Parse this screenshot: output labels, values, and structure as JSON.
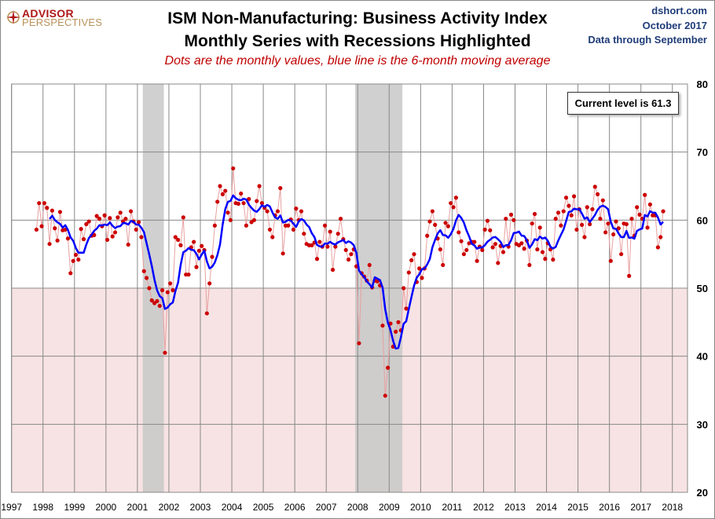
{
  "header": {
    "title_line1": "ISM Non-Manufacturing: Business Activity Index",
    "title_line2": "Monthly Series with Recessions Highlighted",
    "subtitle": "Dots are the monthly values, blue line is the 6-month moving average",
    "source": "dshort.com",
    "date": "October 2017",
    "data_through": "Data through September"
  },
  "logo": {
    "line1": "ADVISOR",
    "line2": "PERSPECTIVES"
  },
  "colors": {
    "dots": "#cc0000",
    "dot_line": "#e8a0a0",
    "ma_line": "#0000ff",
    "recession": "#c8c8c8",
    "contraction_zone": "#f7e3e3",
    "grid": "#888888"
  },
  "chart_data": {
    "type": "line",
    "title": "ISM Non-Manufacturing: Business Activity Index",
    "xlabel": "",
    "ylabel": "",
    "ylim": [
      20,
      80
    ],
    "xlim": [
      1997,
      2018
    ],
    "yticks": [
      "20",
      "30",
      "40",
      "50",
      "60",
      "70",
      "80"
    ],
    "xticks": [
      "1997",
      "1998",
      "1999",
      "2000",
      "2001",
      "2002",
      "2003",
      "2004",
      "2005",
      "2006",
      "2007",
      "2008",
      "2009",
      "2010",
      "2011",
      "2012",
      "2013",
      "2014",
      "2015",
      "2016",
      "2017",
      "2018"
    ],
    "grid": true,
    "series_start": "1997-10",
    "series_end": "2017-09",
    "monthly_values": [
      58.6,
      62.5,
      59.1,
      62.5,
      61.8,
      56.5,
      61.4,
      58.8,
      57.0,
      61.2,
      58.5,
      58.6,
      57.3,
      52.2,
      54.0,
      54.9,
      54.2,
      58.7,
      57.2,
      59.4,
      59.8,
      57.7,
      57.8,
      60.6,
      60.2,
      59.1,
      60.7,
      57.1,
      60.3,
      57.6,
      58.2,
      60.4,
      61.1,
      59.8,
      60.2,
      56.4,
      61.3,
      59.8,
      58.6,
      59.7,
      57.5,
      52.5,
      51.5,
      50.0,
      48.2,
      47.8,
      48.1,
      47.4,
      49.7,
      40.5,
      49.4,
      50.7,
      49.7,
      57.5,
      57.1,
      56.3,
      60.4,
      52.0,
      52.0,
      56.0,
      56.8,
      53.1,
      55.5,
      56.2,
      55.6,
      46.3,
      50.7,
      54.6,
      59.2,
      62.7,
      65.0,
      63.8,
      64.3,
      61.1,
      60.0,
      67.6,
      62.5,
      62.4,
      63.9,
      62.5,
      59.2,
      63.1,
      59.7,
      60.0,
      62.8,
      65.0,
      62.5,
      61.8,
      61.3,
      58.6,
      57.5,
      60.7,
      61.3,
      64.7,
      55.1,
      59.2,
      59.2,
      60.1,
      58.6,
      61.7,
      60.0,
      61.3,
      58.0,
      56.5,
      56.3,
      56.3,
      56.7,
      54.3,
      56.8,
      56.1,
      59.2,
      56.1,
      58.3,
      52.7,
      56.1,
      58.0,
      60.2,
      57.2,
      55.6,
      54.2,
      55.0,
      55.7,
      53.2,
      41.9,
      52.2,
      51.7,
      51.1,
      53.4,
      50.1,
      51.1,
      51.0,
      50.4,
      44.5,
      34.2,
      38.3,
      44.8,
      41.4,
      43.6,
      45.0,
      43.8,
      50.0,
      47.0,
      52.3,
      54.1,
      55.0,
      50.9,
      52.9,
      51.5,
      52.9,
      57.7,
      59.8,
      61.3,
      59.3,
      57.3,
      55.7,
      53.4,
      59.6,
      59.1,
      62.5,
      61.9,
      63.3,
      58.2,
      56.9,
      55.0,
      55.6,
      56.6,
      56.8,
      56.8,
      54.0,
      56.1,
      55.6,
      58.6,
      59.9,
      58.5,
      56.0,
      56.5,
      53.7,
      56.2,
      55.3,
      60.2,
      56.1,
      60.8,
      60.0,
      56.5,
      56.3,
      56.6,
      55.8,
      57.0,
      53.4,
      59.5,
      60.9,
      55.7,
      58.9,
      55.3,
      54.3,
      56.6,
      55.7,
      54.2,
      60.2,
      61.1,
      59.2,
      61.3,
      63.3,
      62.1,
      60.7,
      63.5,
      58.6,
      61.6,
      59.3,
      57.5,
      61.9,
      59.4,
      61.6,
      64.9,
      63.8,
      60.2,
      62.9,
      58.2,
      59.5,
      54.0,
      57.9,
      59.8,
      58.8,
      55.0,
      59.5,
      59.4,
      51.8,
      60.2,
      57.7,
      61.9,
      60.8,
      60.2,
      63.7,
      58.9,
      62.3,
      60.7,
      60.7,
      56.0,
      57.5,
      61.3
    ],
    "moving_average_window": 6,
    "series": [
      {
        "name": "Monthly value",
        "style": "dots"
      },
      {
        "name": "6-month moving average",
        "style": "line"
      }
    ],
    "recessions": [
      {
        "start": 2001.17,
        "end": 2001.84
      },
      {
        "start": 2007.92,
        "end": 2009.42
      }
    ],
    "contraction_threshold": 50,
    "annotation": "Current level is 61.3"
  }
}
